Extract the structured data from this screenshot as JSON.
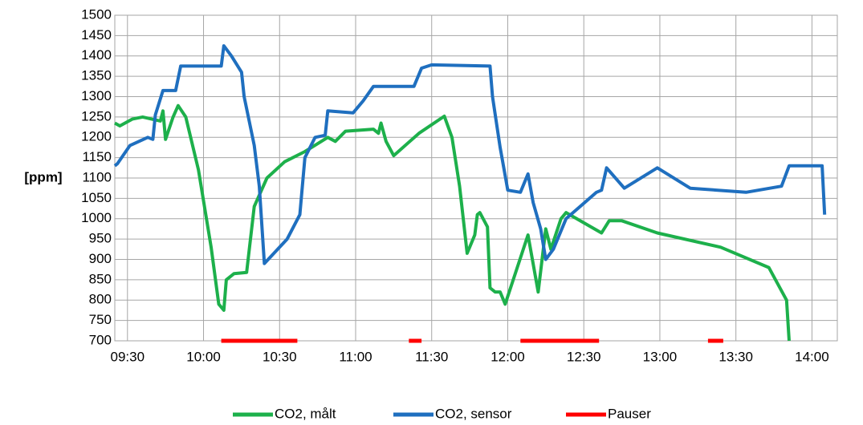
{
  "chart_data": {
    "type": "line",
    "y_label": "[ppm]",
    "xlim": [
      "09:25",
      "14:10"
    ],
    "xticks": [
      "09:30",
      "10:00",
      "10:30",
      "11:00",
      "11:30",
      "12:00",
      "12:30",
      "13:00",
      "13:30",
      "14:00"
    ],
    "ylim": [
      700,
      1500
    ],
    "yticks": [
      700,
      750,
      800,
      850,
      900,
      950,
      1000,
      1050,
      1100,
      1150,
      1200,
      1250,
      1300,
      1350,
      1400,
      1450,
      1500
    ],
    "grid": true,
    "legend": "bottom",
    "series": [
      {
        "name": "CO2, målt",
        "color": "#1db04b",
        "x": [
          "09:25",
          "09:27",
          "09:32",
          "09:36",
          "09:43",
          "09:44",
          "09:45",
          "09:48",
          "09:50",
          "09:53",
          "09:58",
          "10:03",
          "10:06",
          "10:08",
          "10:09",
          "10:12",
          "10:17",
          "10:20",
          "10:25",
          "10:32",
          "10:40",
          "10:49",
          "10:52",
          "10:56",
          "11:07",
          "11:09",
          "11:10",
          "11:12",
          "11:15",
          "11:25",
          "11:35",
          "11:38",
          "11:41",
          "11:44",
          "11:47",
          "11:48",
          "11:49",
          "11:52",
          "11:53",
          "11:55",
          "11:57",
          "11:59",
          "12:08",
          "12:12",
          "12:15",
          "12:17",
          "12:21",
          "12:23",
          "12:37",
          "12:40",
          "12:45",
          "12:59",
          "13:24",
          "13:43",
          "13:50",
          "13:51"
        ],
        "values": [
          1235,
          1228,
          1245,
          1250,
          1240,
          1265,
          1195,
          1250,
          1278,
          1250,
          1120,
          930,
          790,
          775,
          850,
          865,
          868,
          1030,
          1100,
          1140,
          1165,
          1200,
          1190,
          1215,
          1220,
          1210,
          1235,
          1190,
          1155,
          1210,
          1252,
          1200,
          1080,
          915,
          960,
          1010,
          1015,
          980,
          830,
          820,
          820,
          790,
          960,
          820,
          975,
          925,
          1000,
          1015,
          965,
          995,
          995,
          965,
          930,
          880,
          800,
          700
        ]
      },
      {
        "name": "CO2, sensor",
        "color": "#1f6fbf",
        "x": [
          "09:25",
          "09:26",
          "09:31",
          "09:38",
          "09:40",
          "09:41",
          "09:44",
          "09:49",
          "09:51",
          "10:07",
          "10:08",
          "10:11",
          "10:15",
          "10:16",
          "10:18",
          "10:20",
          "10:22",
          "10:24",
          "10:33",
          "10:38",
          "10:40",
          "10:44",
          "10:48",
          "10:49",
          "10:59",
          "11:03",
          "11:07",
          "11:23",
          "11:26",
          "11:30",
          "11:53",
          "11:54",
          "11:57",
          "12:00",
          "12:05",
          "12:08",
          "12:10",
          "12:13",
          "12:15",
          "12:18",
          "12:23",
          "12:35",
          "12:37",
          "12:39",
          "12:46",
          "12:59",
          "13:12",
          "13:34",
          "13:48",
          "13:51",
          "14:04",
          "14:05"
        ],
        "values": [
          1130,
          1135,
          1180,
          1200,
          1195,
          1255,
          1315,
          1315,
          1375,
          1375,
          1425,
          1400,
          1360,
          1300,
          1240,
          1180,
          1080,
          890,
          950,
          1010,
          1150,
          1200,
          1205,
          1265,
          1260,
          1290,
          1325,
          1325,
          1370,
          1378,
          1375,
          1300,
          1175,
          1070,
          1065,
          1110,
          1040,
          975,
          900,
          925,
          1000,
          1065,
          1070,
          1125,
          1075,
          1125,
          1075,
          1065,
          1080,
          1130,
          1130,
          1010
        ]
      },
      {
        "name": "Pauser",
        "color": "#ff0000",
        "x": [
          "10:07",
          "10:37",
          "11:21",
          "11:21",
          "11:26",
          "12:05",
          "12:05",
          "12:36",
          "13:19",
          "13:19",
          "13:25"
        ],
        "values": [
          700,
          700,
          null,
          700,
          700,
          null,
          700,
          700,
          null,
          700,
          700
        ]
      }
    ]
  }
}
